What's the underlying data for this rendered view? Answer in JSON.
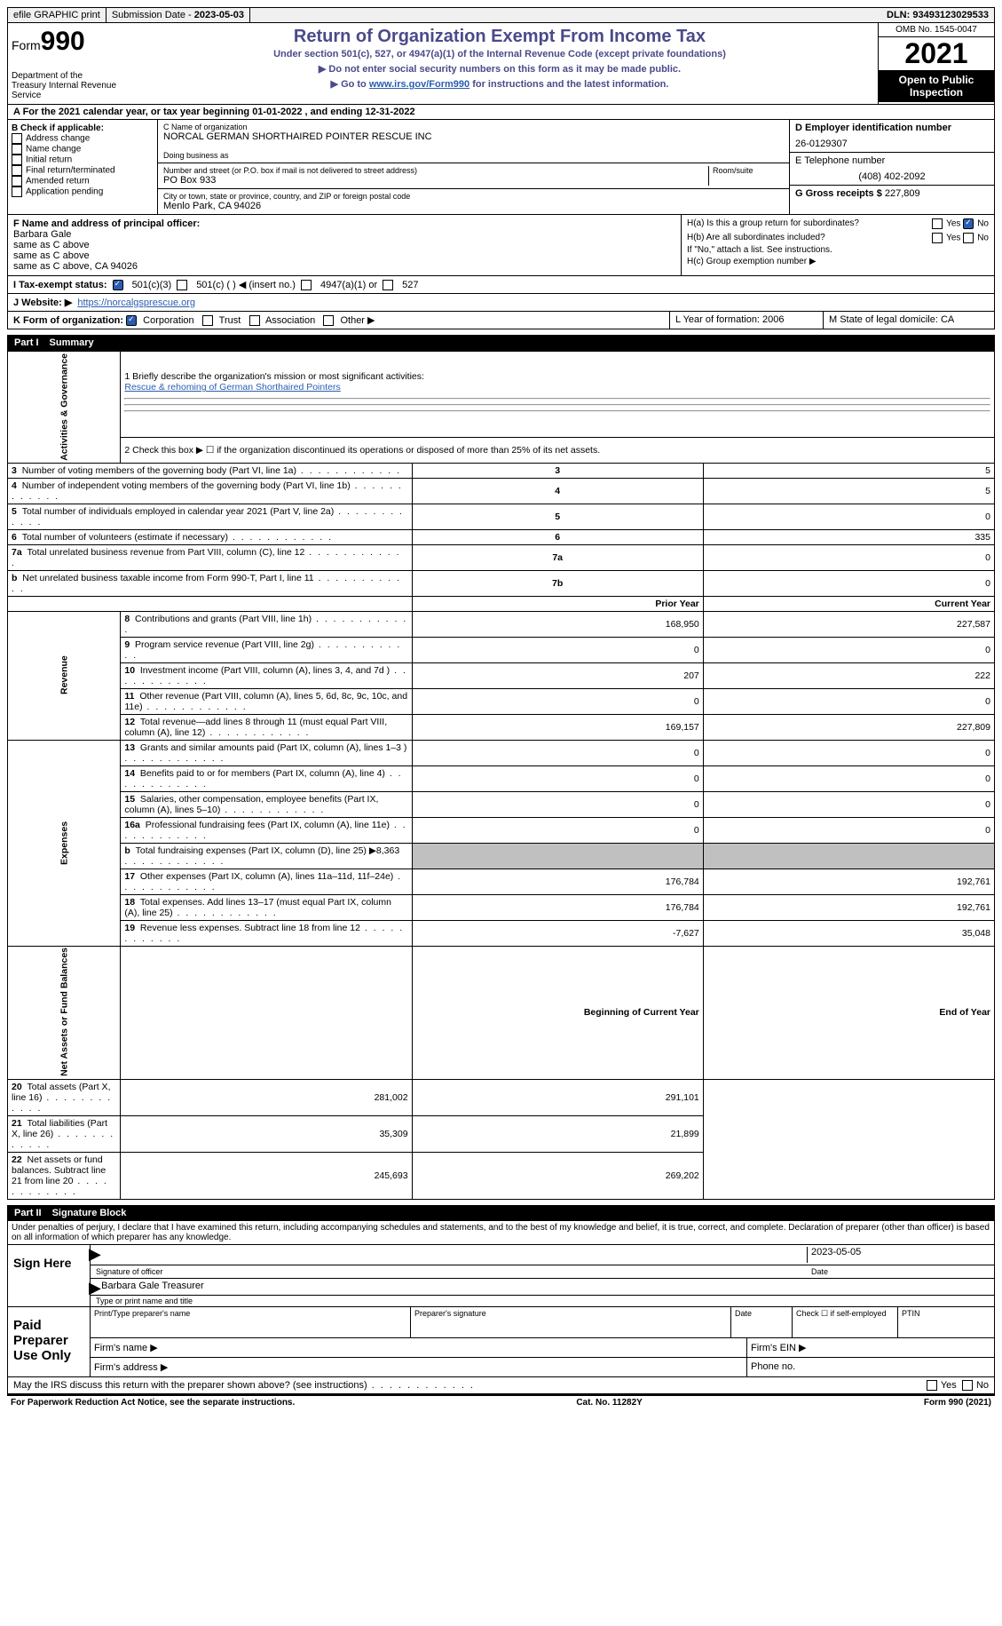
{
  "topbar": {
    "efile": "efile GRAPHIC print",
    "subdate_label": "Submission Date - ",
    "subdate": "2023-05-03",
    "dln_label": "DLN: ",
    "dln": "93493123029533"
  },
  "header": {
    "form_label": "Form",
    "form_num": "990",
    "dept": "Department of the Treasury\nInternal Revenue Service",
    "title": "Return of Organization Exempt From Income Tax",
    "subtitle": "Under section 501(c), 527, or 4947(a)(1) of the Internal Revenue Code (except private foundations)",
    "note1": "▶ Do not enter social security numbers on this form as it may be made public.",
    "note2_pre": "▶ Go to ",
    "note2_link": "www.irs.gov/Form990",
    "note2_post": " for instructions and the latest information.",
    "omb": "OMB No. 1545-0047",
    "year": "2021",
    "inspection": "Open to Public Inspection"
  },
  "row_a": "A For the 2021 calendar year, or tax year beginning 01-01-2022    , and ending 12-31-2022",
  "col_b": {
    "label": "B Check if applicable:",
    "opts": [
      "Address change",
      "Name change",
      "Initial return",
      "Final return/terminated",
      "Amended return",
      "Application pending"
    ]
  },
  "col_c": {
    "name_label": "C Name of organization",
    "name": "NORCAL GERMAN SHORTHAIRED POINTER RESCUE INC",
    "dba_label": "Doing business as",
    "addr_label": "Number and street (or P.O. box if mail is not delivered to street address)",
    "addr": "PO Box 933",
    "room_label": "Room/suite",
    "city_label": "City or town, state or province, country, and ZIP or foreign postal code",
    "city": "Menlo Park, CA  94026"
  },
  "col_d": {
    "ein_label": "D Employer identification number",
    "ein": "26-0129307",
    "tel_label": "E Telephone number",
    "tel": "(408) 402-2092",
    "gross_label": "G Gross receipts $ ",
    "gross": "227,809"
  },
  "fh": {
    "f_label": "F  Name and address of principal officer:",
    "f_name": "Barbara Gale",
    "f_l1": "same as C above",
    "f_l2": "same as C above",
    "f_l3": "same as C above, CA  94026",
    "ha": "H(a)  Is this a group return for subordinates?",
    "hb": "H(b)  Are all subordinates included?",
    "hb_note": "If \"No,\" attach a list. See instructions.",
    "hc": "H(c)  Group exemption number ▶",
    "yes": "Yes",
    "no": "No"
  },
  "tax_line": {
    "i": "I    Tax-exempt status:",
    "o1": "501(c)(3)",
    "o2": "501(c) (  ) ◀ (insert no.)",
    "o3": "4947(a)(1) or",
    "o4": "527"
  },
  "j": {
    "label": "J   Website: ▶  ",
    "url": "https://norcalgsprescue.org"
  },
  "k": {
    "label": "K Form of organization:",
    "opts": [
      "Corporation",
      "Trust",
      "Association",
      "Other ▶"
    ],
    "l": "L Year of formation: 2006",
    "m": "M State of legal domicile: CA"
  },
  "parts": {
    "p1": "Part I",
    "p1_title": "Summary",
    "p2": "Part II",
    "p2_title": "Signature Block"
  },
  "summary": {
    "line1_label": "1   Briefly describe the organization's mission or most significant activities:",
    "line1_text": "Rescue & rehoming of German Shorthaired Pointers",
    "line2": "2   Check this box ▶ ☐  if the organization discontinued its operations or disposed of more than 25% of its net assets.",
    "sections": {
      "gov": "Activities & Governance",
      "rev": "Revenue",
      "exp": "Expenses",
      "net": "Net Assets or Fund Balances"
    },
    "rows_gov": [
      {
        "n": "3",
        "label": "Number of voting members of the governing body (Part VI, line 1a)",
        "box": "3",
        "val": "5"
      },
      {
        "n": "4",
        "label": "Number of independent voting members of the governing body (Part VI, line 1b)",
        "box": "4",
        "val": "5"
      },
      {
        "n": "5",
        "label": "Total number of individuals employed in calendar year 2021 (Part V, line 2a)",
        "box": "5",
        "val": "0"
      },
      {
        "n": "6",
        "label": "Total number of volunteers (estimate if necessary)",
        "box": "6",
        "val": "335"
      },
      {
        "n": "7a",
        "label": "Total unrelated business revenue from Part VIII, column (C), line 12",
        "box": "7a",
        "val": "0"
      },
      {
        "n": "b",
        "label": "Net unrelated business taxable income from Form 990-T, Part I, line 11",
        "box": "7b",
        "val": "0"
      }
    ],
    "col_prior": "Prior Year",
    "col_current": "Current Year",
    "rows_rev": [
      {
        "n": "8",
        "label": "Contributions and grants (Part VIII, line 1h)",
        "prior": "168,950",
        "cur": "227,587"
      },
      {
        "n": "9",
        "label": "Program service revenue (Part VIII, line 2g)",
        "prior": "0",
        "cur": "0"
      },
      {
        "n": "10",
        "label": "Investment income (Part VIII, column (A), lines 3, 4, and 7d )",
        "prior": "207",
        "cur": "222"
      },
      {
        "n": "11",
        "label": "Other revenue (Part VIII, column (A), lines 5, 6d, 8c, 9c, 10c, and 11e)",
        "prior": "0",
        "cur": "0"
      },
      {
        "n": "12",
        "label": "Total revenue—add lines 8 through 11 (must equal Part VIII, column (A), line 12)",
        "prior": "169,157",
        "cur": "227,809"
      }
    ],
    "rows_exp": [
      {
        "n": "13",
        "label": "Grants and similar amounts paid (Part IX, column (A), lines 1–3 )",
        "prior": "0",
        "cur": "0"
      },
      {
        "n": "14",
        "label": "Benefits paid to or for members (Part IX, column (A), line 4)",
        "prior": "0",
        "cur": "0"
      },
      {
        "n": "15",
        "label": "Salaries, other compensation, employee benefits (Part IX, column (A), lines 5–10)",
        "prior": "0",
        "cur": "0"
      },
      {
        "n": "16a",
        "label": "Professional fundraising fees (Part IX, column (A), line 11e)",
        "prior": "0",
        "cur": "0"
      },
      {
        "n": "b",
        "label": "Total fundraising expenses (Part IX, column (D), line 25) ▶8,363",
        "prior": "__SHADE__",
        "cur": "__SHADE__"
      },
      {
        "n": "17",
        "label": "Other expenses (Part IX, column (A), lines 11a–11d, 11f–24e)",
        "prior": "176,784",
        "cur": "192,761"
      },
      {
        "n": "18",
        "label": "Total expenses. Add lines 13–17 (must equal Part IX, column (A), line 25)",
        "prior": "176,784",
        "cur": "192,761"
      },
      {
        "n": "19",
        "label": "Revenue less expenses. Subtract line 18 from line 12",
        "prior": "-7,627",
        "cur": "35,048"
      }
    ],
    "col_begin": "Beginning of Current Year",
    "col_end": "End of Year",
    "rows_net": [
      {
        "n": "20",
        "label": "Total assets (Part X, line 16)",
        "prior": "281,002",
        "cur": "291,101"
      },
      {
        "n": "21",
        "label": "Total liabilities (Part X, line 26)",
        "prior": "35,309",
        "cur": "21,899"
      },
      {
        "n": "22",
        "label": "Net assets or fund balances. Subtract line 21 from line 20",
        "prior": "245,693",
        "cur": "269,202"
      }
    ]
  },
  "sig": {
    "penalties": "Under penalties of perjury, I declare that I have examined this return, including accompanying schedules and statements, and to the best of my knowledge and belief, it is true, correct, and complete. Declaration of preparer (other than officer) is based on all information of which preparer has any knowledge.",
    "sign_here": "Sign Here",
    "sig_officer": "Signature of officer",
    "sig_date": "2023-05-05",
    "date_label": "Date",
    "name_title": "Barbara Gale  Treasurer",
    "type_name": "Type or print name and title",
    "paid": "Paid Preparer Use Only",
    "p_name": "Print/Type preparer's name",
    "p_sig": "Preparer's signature",
    "p_date": "Date",
    "p_check": "Check ☐ if self-employed",
    "p_ptin": "PTIN",
    "firm_name": "Firm's name    ▶",
    "firm_ein": "Firm's EIN ▶",
    "firm_addr": "Firm's address ▶",
    "firm_phone": "Phone no.",
    "may_discuss": "May the IRS discuss this return with the preparer shown above? (see instructions)"
  },
  "footer": {
    "left": "For Paperwork Reduction Act Notice, see the separate instructions.",
    "mid": "Cat. No. 11282Y",
    "right": "Form 990 (2021)"
  }
}
